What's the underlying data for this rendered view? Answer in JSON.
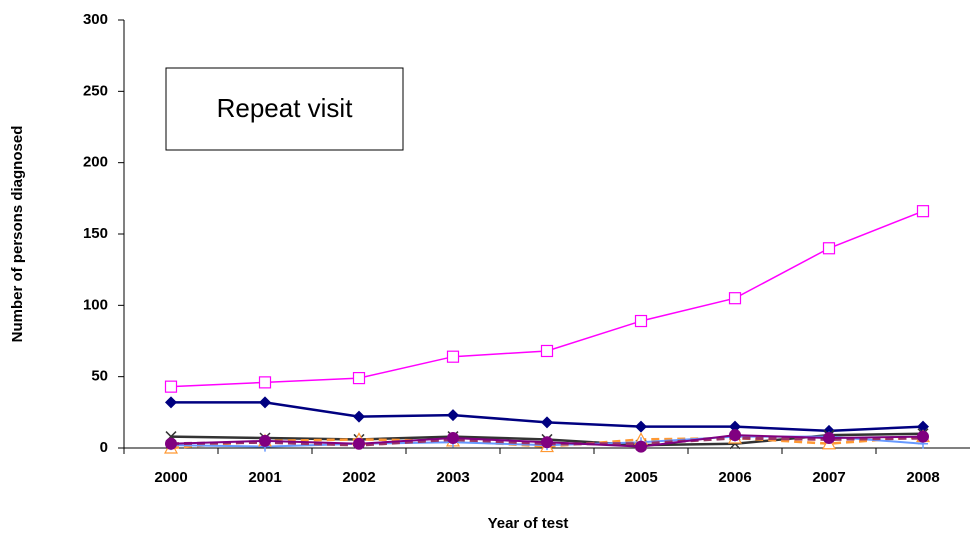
{
  "chart_data": {
    "type": "line",
    "annotation": "Repeat visit",
    "x_label": "Year of test",
    "y_label": "Number of persons diagnosed",
    "categories": [
      "2000",
      "2001",
      "2002",
      "2003",
      "2004",
      "2005",
      "2006",
      "2007",
      "2008"
    ],
    "ylim": [
      0,
      300
    ],
    "yticks": [
      0,
      50,
      100,
      150,
      200,
      250,
      300
    ],
    "grid": false,
    "series": [
      {
        "color": "#ff00ff",
        "marker": "square-open",
        "dash": "solid",
        "width": 1.5,
        "values": [
          43,
          46,
          49,
          64,
          68,
          89,
          105,
          140,
          166
        ]
      },
      {
        "color": "#000080",
        "marker": "diamond",
        "dash": "solid",
        "width": 2.5,
        "values": [
          32,
          32,
          22,
          23,
          18,
          15,
          15,
          12,
          15
        ]
      },
      {
        "color": "#333333",
        "marker": "x",
        "dash": "solid",
        "width": 2.5,
        "values": [
          8,
          7,
          6,
          8,
          6,
          2,
          3,
          9,
          10
        ]
      },
      {
        "color": "#ff9933",
        "marker": "triangle-open",
        "dash": "dashed",
        "width": 2.5,
        "values": [
          0,
          5,
          6,
          5,
          1,
          6,
          7,
          3,
          8
        ]
      },
      {
        "color": "#6699ff",
        "marker": "plus",
        "dash": "solid",
        "width": 2,
        "values": [
          2,
          1,
          3,
          4,
          2,
          4,
          8,
          8,
          3
        ]
      },
      {
        "color": "#993366",
        "marker": "none",
        "dash": "dashed",
        "width": 3,
        "values": [
          3,
          4,
          2,
          6,
          3,
          3,
          7,
          6,
          7
        ]
      },
      {
        "color": "#800080",
        "marker": "circle",
        "dash": "solid",
        "width": 2,
        "values": [
          3,
          5,
          3,
          7,
          4,
          1,
          9,
          7,
          8
        ]
      }
    ]
  }
}
